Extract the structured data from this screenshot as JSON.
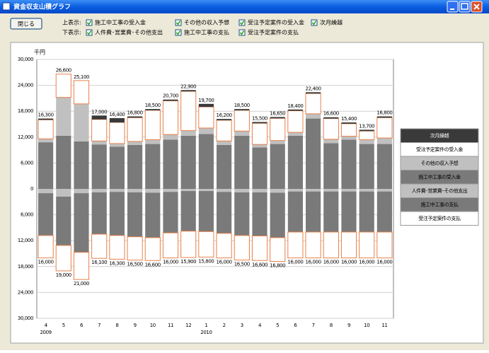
{
  "window": {
    "title": "資金収支山積グラフ"
  },
  "toolbar": {
    "close_button": "閉じる",
    "upper_label": "上表示:",
    "upper_options": [
      "施工中工事の受入金",
      "その他の収入予想",
      "受注予定案件の受入金",
      "次月繰越"
    ],
    "lower_label": "下表示:",
    "lower_options": [
      "人件費･営業費･その他支出",
      "施工中工事の支払",
      "受注予定案件の支払"
    ]
  },
  "chart_data": {
    "type": "bar",
    "stacked": true,
    "unit_label": "千円",
    "categories": [
      "4",
      "5",
      "6",
      "7",
      "8",
      "9",
      "10",
      "11",
      "12",
      "1",
      "2",
      "3",
      "4",
      "5",
      "6",
      "7",
      "8",
      "9",
      "10",
      "11"
    ],
    "years": [
      "2009",
      null,
      null,
      null,
      null,
      null,
      null,
      null,
      null,
      "2010",
      null,
      null,
      null,
      null,
      null,
      null,
      null,
      null,
      null,
      null
    ],
    "ylim": [
      -30000,
      30000
    ],
    "yticks": [
      {
        "value": -30000,
        "label": "30,000"
      },
      {
        "value": -24000,
        "label": "24,000"
      },
      {
        "value": -18000,
        "label": "18,000"
      },
      {
        "value": -12000,
        "label": "12,000"
      },
      {
        "value": -6000,
        "label": "6,000"
      },
      0,
      {
        "value": 6000,
        "label": "6,000"
      },
      {
        "value": 12000,
        "label": "12,000"
      },
      {
        "value": 18000,
        "label": "18,000"
      },
      {
        "value": 24000,
        "label": "24,000"
      },
      {
        "value": 30000,
        "label": "30,000"
      }
    ],
    "grid": true,
    "series": [
      {
        "name": "次月繰越",
        "color": "#3a3a3a",
        "values": [
          300,
          0,
          0,
          900,
          1000,
          300,
          300,
          300,
          300,
          700,
          300,
          300,
          300,
          300,
          300,
          300,
          300,
          300,
          300,
          300
        ]
      },
      {
        "name": "受注予定案件の受入金",
        "color": "#ffffff",
        "edgecolor": "#e8804a",
        "values": [
          4400,
          5400,
          5400,
          5000,
          4900,
          5500,
          6800,
          7800,
          9100,
          4900,
          4800,
          4800,
          4900,
          5150,
          5000,
          4700,
          4800,
          2900,
          2000,
          4700
        ]
      },
      {
        "name": "その他の収入予想",
        "color": "#c0c0c0",
        "values": [
          800,
          8900,
          8700,
          800,
          700,
          800,
          1000,
          1200,
          1200,
          1400,
          900,
          1100,
          700,
          800,
          800,
          1100,
          900,
          800,
          1000,
          1400
        ]
      },
      {
        "name": "施工中工事の受入金",
        "color": "#7a7a7a",
        "values": [
          10800,
          12300,
          11000,
          10300,
          9800,
          10200,
          10400,
          11400,
          12300,
          12700,
          10200,
          12300,
          9600,
          10400,
          12300,
          16300,
          10600,
          11400,
          10400,
          10400
        ]
      },
      {
        "name": "人件費･営業費･その他支出",
        "color": "#c0c0c0",
        "values": [
          -1000,
          -1800,
          -1000,
          -800,
          -700,
          -800,
          -900,
          -700,
          -500,
          -500,
          -700,
          -800,
          -800,
          -900,
          -600,
          -600,
          -600,
          -600,
          -600,
          -600
        ]
      },
      {
        "name": "施工中工事の支払",
        "color": "#7a7a7a",
        "values": [
          -9800,
          -11300,
          -13700,
          -9700,
          -10100,
          -10300,
          -10400,
          -9500,
          -9300,
          -9400,
          -9600,
          -10000,
          -10100,
          -10400,
          -9400,
          -9400,
          -9400,
          -9400,
          -9400,
          -9400
        ]
      },
      {
        "name": "受注予定案件の支払",
        "color": "#ffffff",
        "edgecolor": "#e8804a",
        "values": [
          -5200,
          -5900,
          -6300,
          -5600,
          -5500,
          -5400,
          -5300,
          -5800,
          -6100,
          -5900,
          -5700,
          -5700,
          -5700,
          -5500,
          -6000,
          -6000,
          -6000,
          -6000,
          -6000,
          -6000
        ]
      }
    ],
    "upper_totals": {
      "values": [
        16300,
        26600,
        25100,
        17000,
        16400,
        16800,
        18500,
        20700,
        22900,
        19700,
        16200,
        18500,
        15500,
        16650,
        18400,
        22400,
        16600,
        15400,
        13700,
        16800
      ],
      "value_labels": [
        "16,300",
        "26,600",
        "25,100",
        "17,000",
        "16,400",
        "16,800",
        "18,500",
        "20,700",
        "22,900",
        "19,700",
        "16,200",
        "18,500",
        "15,500",
        "16,650",
        "18,400",
        "22,400",
        "16,600",
        "15,400",
        "13,700",
        "16,800"
      ]
    },
    "lower_totals": {
      "values": [
        -16000,
        -19000,
        -21000,
        -16100,
        -16300,
        -16500,
        -16600,
        -16000,
        -15900,
        -15800,
        -16000,
        -16500,
        -16600,
        -16800,
        -16000,
        -16000,
        -16000,
        -16000,
        -16000,
        -16000
      ],
      "value_labels": [
        "16,000",
        "19,000",
        "21,000",
        "16,100",
        "16,300",
        "16,500",
        "16,600",
        "16,000",
        "15,900",
        "15,800",
        "16,000",
        "16,500",
        "16,600",
        "16,800",
        "16,000",
        "16,000",
        "16,000",
        "16,000",
        "16,000",
        "16,000"
      ]
    }
  }
}
